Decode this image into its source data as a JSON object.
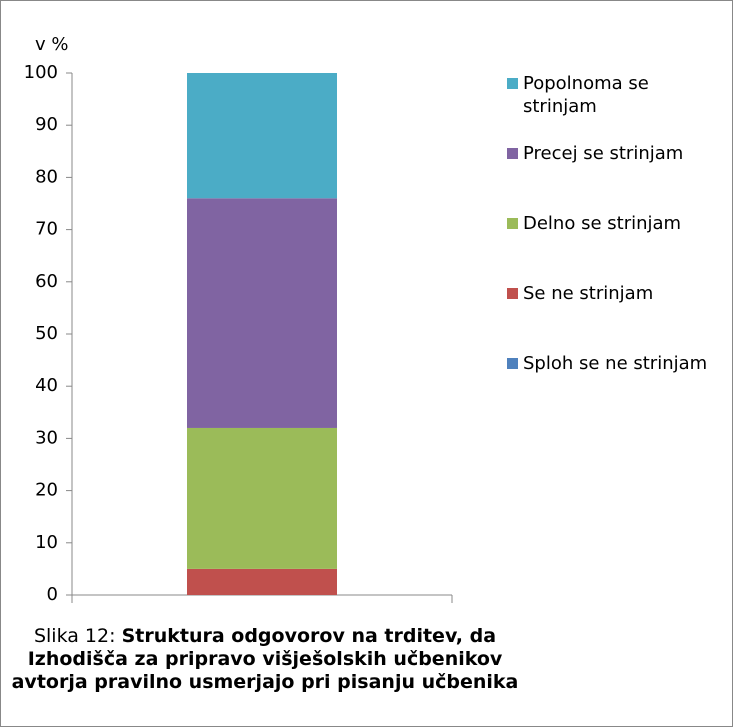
{
  "chart_data": {
    "type": "stacked_bar",
    "y_label": "v %",
    "categories": [
      null
    ],
    "series": [
      {
        "name": "Sploh se ne strinjam",
        "color": "#4f81bd",
        "values": [
          0
        ]
      },
      {
        "name": "Se ne strinjam",
        "color": "#c0504d",
        "values": [
          5
        ]
      },
      {
        "name": "Delno se strinjam",
        "color": "#9bbb59",
        "values": [
          27
        ]
      },
      {
        "name": "Precej se strinjam",
        "color": "#8064a2",
        "values": [
          44
        ]
      },
      {
        "name": "Popolnoma se strinjam",
        "color": "#4bacc6",
        "values": [
          24
        ]
      }
    ],
    "ylim": [
      0,
      100
    ],
    "yticks": [
      0,
      10,
      20,
      30,
      40,
      50,
      60,
      70,
      80,
      90,
      100
    ],
    "legend": "right",
    "caption_label": "Slika 12:",
    "caption": "Struktura odgovorov na trditev, da Izhodišča za pripravo višješolskih učbenikov avtorja pravilno usmerjajo pri pisanju učbenika"
  }
}
